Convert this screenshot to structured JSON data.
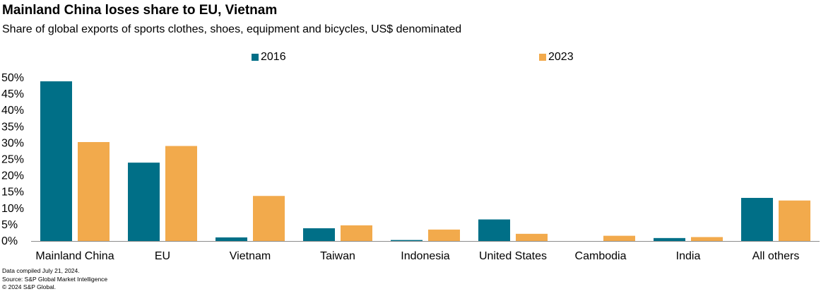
{
  "chart_data": {
    "type": "bar",
    "title": "Mainland China loses share to EU, Vietnam",
    "subtitle": "Share of global exports of sports clothes, shoes, equipment and bicycles, US$ denominated",
    "categories": [
      "Mainland China",
      "EU",
      "Vietnam",
      "Taiwan",
      "Indonesia",
      "United States",
      "Cambodia",
      "India",
      "All others"
    ],
    "series": [
      {
        "name": "2016",
        "color": "#006f87",
        "values": [
          48.9,
          24.0,
          1.1,
          3.9,
          0.3,
          6.6,
          0.0,
          0.9,
          13.2
        ]
      },
      {
        "name": "2023",
        "color": "#f2aa4c",
        "values": [
          30.3,
          29.1,
          13.8,
          4.8,
          3.5,
          2.2,
          1.6,
          1.2,
          12.4
        ]
      }
    ],
    "ylim": [
      0,
      50
    ],
    "yticks": [
      "0%",
      "5%",
      "10%",
      "15%",
      "20%",
      "25%",
      "30%",
      "35%",
      "40%",
      "45%",
      "50%"
    ],
    "legend_position": "top",
    "grid": false
  },
  "notes": [
    "Data compiled July 21, 2024.",
    "Source: S&P Global Market Intelligence",
    "© 2024 S&P Global."
  ]
}
